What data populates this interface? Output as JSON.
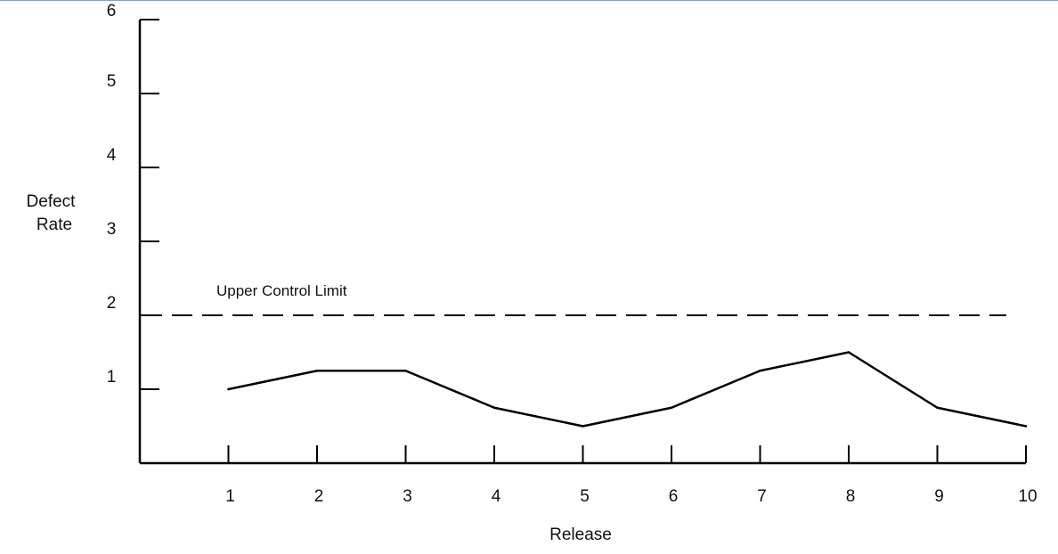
{
  "chart_data": {
    "type": "line",
    "title": "",
    "xlabel": "Release",
    "ylabel": [
      "Defect",
      "Rate"
    ],
    "x": [
      1,
      2,
      3,
      4,
      5,
      6,
      7,
      8,
      9,
      10
    ],
    "x_ticks": [
      "1",
      "2",
      "3",
      "4",
      "5",
      "6",
      "7",
      "8",
      "9",
      "10"
    ],
    "y_ticks": [
      "1",
      "2",
      "3",
      "4",
      "5",
      "6"
    ],
    "series": [
      {
        "values": [
          1.0,
          1.25,
          1.25,
          0.75,
          0.5,
          0.75,
          1.25,
          1.5,
          0.75,
          0.5
        ]
      }
    ],
    "reference_lines": [
      {
        "label": "Upper Control Limit",
        "y": 2,
        "style": "dashed"
      }
    ],
    "xlim": [
      0,
      10
    ],
    "ylim": [
      0,
      6
    ],
    "grid": false,
    "legend": "none",
    "colors": {
      "line": "#000000",
      "axis": "#000000"
    }
  }
}
